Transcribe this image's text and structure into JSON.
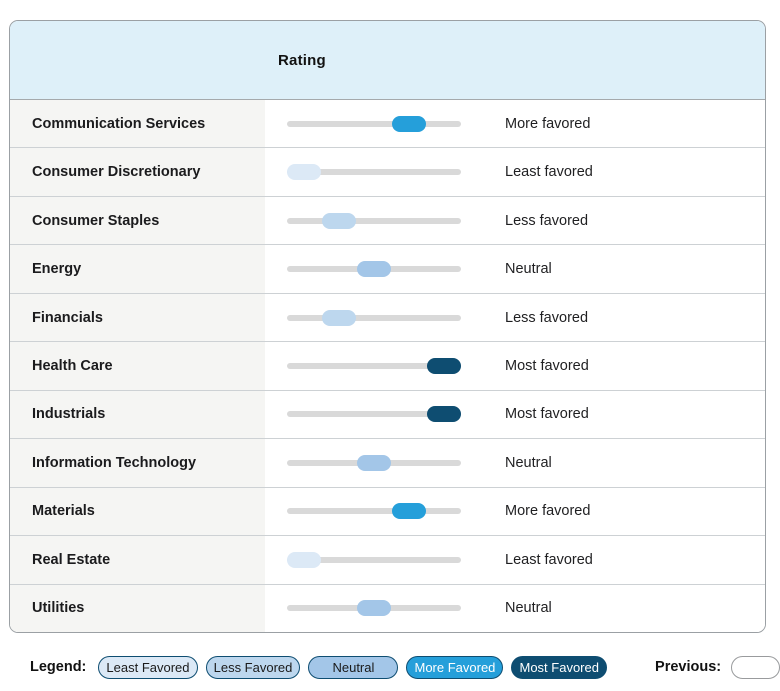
{
  "header": {
    "rating_label": "Rating"
  },
  "rating_scale": {
    "levels": [
      "Least favored",
      "Less favored",
      "Neutral",
      "More favored",
      "Most favored"
    ],
    "colors": [
      "#dce9f6",
      "#bdd7ee",
      "#a3c6e8",
      "#259fda",
      "#0e4d71"
    ]
  },
  "rows": [
    {
      "sector": "Communication Services",
      "rating": "More favored",
      "level": 3
    },
    {
      "sector": "Consumer Discretionary",
      "rating": "Least favored",
      "level": 0
    },
    {
      "sector": "Consumer Staples",
      "rating": "Less favored",
      "level": 1
    },
    {
      "sector": "Energy",
      "rating": "Neutral",
      "level": 2
    },
    {
      "sector": "Financials",
      "rating": "Less favored",
      "level": 1
    },
    {
      "sector": "Health Care",
      "rating": "Most favored",
      "level": 4
    },
    {
      "sector": "Industrials",
      "rating": "Most favored",
      "level": 4
    },
    {
      "sector": "Information Technology",
      "rating": "Neutral",
      "level": 2
    },
    {
      "sector": "Materials",
      "rating": "More favored",
      "level": 3
    },
    {
      "sector": "Real Estate",
      "rating": "Least favored",
      "level": 0
    },
    {
      "sector": "Utilities",
      "rating": "Neutral",
      "level": 2
    }
  ],
  "legend": {
    "label": "Legend:",
    "items": [
      {
        "label": "Least Favored",
        "level": 0,
        "text_color": "#1a1a1a"
      },
      {
        "label": "Less Favored",
        "level": 1,
        "text_color": "#1a1a1a"
      },
      {
        "label": "Neutral",
        "level": 2,
        "text_color": "#1a1a1a"
      },
      {
        "label": "More Favored",
        "level": 3,
        "text_color": "#ffffff"
      },
      {
        "label": "Most Favored",
        "level": 4,
        "text_color": "#ffffff"
      }
    ],
    "previous_label": "Previous:"
  },
  "colors": {
    "header_bg": "#def0f9",
    "sector_cell_bg": "#f5f5f3",
    "track": "#d9d9d9",
    "panel_border": "#9ba0a4"
  },
  "chart_data": {
    "type": "table",
    "title": "Rating",
    "scale": [
      "Least favored",
      "Less favored",
      "Neutral",
      "More favored",
      "Most favored"
    ],
    "scale_numeric_range": [
      0,
      4
    ],
    "rows": [
      {
        "sector": "Communication Services",
        "rating": "More favored",
        "value": 3
      },
      {
        "sector": "Consumer Discretionary",
        "rating": "Least favored",
        "value": 0
      },
      {
        "sector": "Consumer Staples",
        "rating": "Less favored",
        "value": 1
      },
      {
        "sector": "Energy",
        "rating": "Neutral",
        "value": 2
      },
      {
        "sector": "Financials",
        "rating": "Less favored",
        "value": 1
      },
      {
        "sector": "Health Care",
        "rating": "Most favored",
        "value": 4
      },
      {
        "sector": "Industrials",
        "rating": "Most favored",
        "value": 4
      },
      {
        "sector": "Information Technology",
        "rating": "Neutral",
        "value": 2
      },
      {
        "sector": "Materials",
        "rating": "More favored",
        "value": 3
      },
      {
        "sector": "Real Estate",
        "rating": "Least favored",
        "value": 0
      },
      {
        "sector": "Utilities",
        "rating": "Neutral",
        "value": 2
      }
    ],
    "legend_position": "bottom"
  }
}
